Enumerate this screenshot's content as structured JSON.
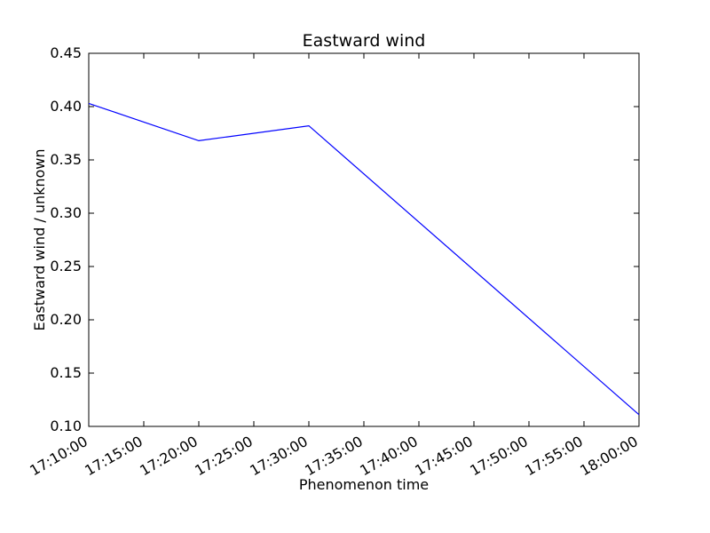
{
  "chart_data": {
    "type": "line",
    "title": "Eastward wind",
    "xlabel": "Phenomenon time",
    "ylabel": "Eastward wind / unknown",
    "x_ticks": [
      "17:10:00",
      "17:15:00",
      "17:20:00",
      "17:25:00",
      "17:30:00",
      "17:35:00",
      "17:40:00",
      "17:45:00",
      "17:50:00",
      "17:55:00",
      "18:00:00"
    ],
    "y_ticks": [
      "0.10",
      "0.15",
      "0.20",
      "0.25",
      "0.30",
      "0.35",
      "0.40",
      "0.45"
    ],
    "xlim": [
      "17:10:00",
      "18:00:00"
    ],
    "ylim": [
      0.1,
      0.45
    ],
    "grid": false,
    "series": [
      {
        "color": "#0000ff",
        "x": [
          "17:10:00",
          "17:20:00",
          "17:30:00",
          "18:00:00"
        ],
        "y": [
          0.403,
          0.368,
          0.382,
          0.111
        ]
      }
    ]
  }
}
